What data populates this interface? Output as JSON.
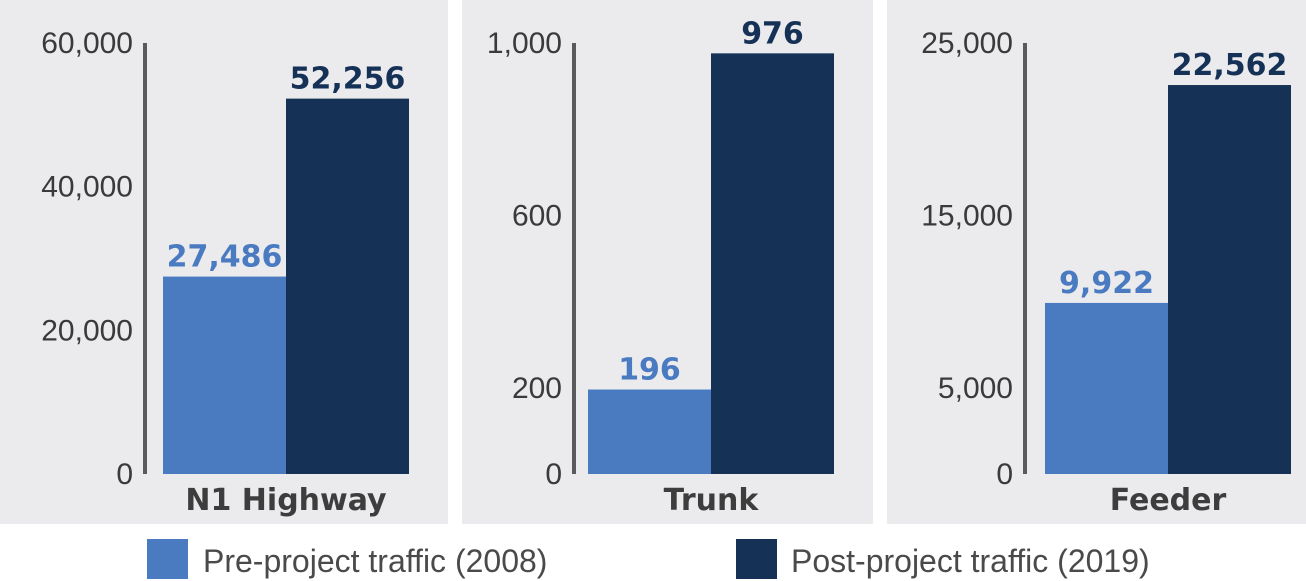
{
  "chart_data": [
    {
      "type": "bar",
      "category": "N1 Highway",
      "series": [
        {
          "name": "Pre-project traffic (2008)",
          "value": 27486,
          "label": "27,486"
        },
        {
          "name": "Post-project traffic (2019)",
          "value": 52256,
          "label": "52,256"
        }
      ],
      "ylim": [
        0,
        60000
      ],
      "yticks": [
        0,
        20000,
        40000,
        60000
      ],
      "ytick_labels": [
        "0",
        "20,000",
        "40,000",
        "60,000"
      ]
    },
    {
      "type": "bar",
      "category": "Trunk",
      "series": [
        {
          "name": "Pre-project traffic (2008)",
          "value": 196,
          "label": "196"
        },
        {
          "name": "Post-project traffic (2019)",
          "value": 976,
          "label": "976"
        }
      ],
      "ylim": [
        0,
        1000
      ],
      "yticks": [
        0,
        200,
        600,
        1000
      ],
      "ytick_labels": [
        "0",
        "200",
        "600",
        "1,000"
      ]
    },
    {
      "type": "bar",
      "category": "Feeder",
      "series": [
        {
          "name": "Pre-project traffic (2008)",
          "value": 9922,
          "label": "9,922"
        },
        {
          "name": "Post-project traffic (2019)",
          "value": 22562,
          "label": "22,562"
        }
      ],
      "ylim": [
        0,
        25000
      ],
      "yticks": [
        0,
        5000,
        15000,
        25000
      ],
      "ytick_labels": [
        "0",
        "5,000",
        "15,000",
        "25,000"
      ]
    }
  ],
  "legend": {
    "items": [
      {
        "label": "Pre-project traffic (2008)",
        "color": "#4a7bc0"
      },
      {
        "label": "Post-project traffic (2019)",
        "color": "#153256"
      }
    ]
  },
  "colors": {
    "panel_background": "#ebebee",
    "axis": "#5a5a5a",
    "pre_value_text": "#4a7bc0",
    "post_value_text": "#153256"
  }
}
